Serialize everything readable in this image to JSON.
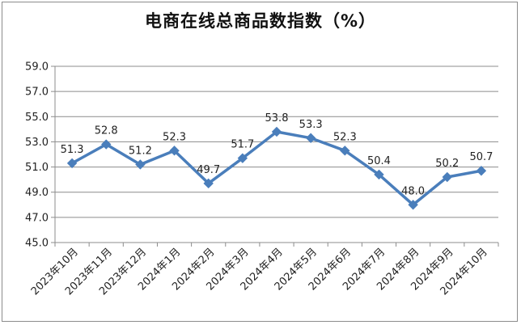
{
  "chart_data": {
    "type": "line",
    "title": "电商在线总商品数指数（%）",
    "categories": [
      "2023年10月",
      "2023年11月",
      "2023年12月",
      "2024年1月",
      "2024年2月",
      "2024年3月",
      "2024年4月",
      "2024年5月",
      "2024年6月",
      "2024年7月",
      "2024年8月",
      "2024年9月",
      "2024年10月"
    ],
    "series": [
      {
        "values": [
          51.3,
          52.8,
          51.2,
          52.3,
          49.7,
          51.7,
          53.8,
          53.3,
          52.3,
          50.4,
          48.0,
          50.2,
          50.7
        ],
        "labels": [
          "51.3",
          "52.8",
          "51.2",
          "52.3",
          "49.7",
          "51.7",
          "53.8",
          "53.3",
          "52.3",
          "50.4",
          "48.0",
          "50.2",
          "50.7"
        ],
        "color": "#4a7ebb",
        "marker": "diamond"
      }
    ],
    "yticks": [
      "45.0",
      "47.0",
      "49.0",
      "51.0",
      "53.0",
      "55.0",
      "57.0",
      "59.0"
    ],
    "ylim": [
      45,
      59
    ],
    "xlabel": "",
    "ylabel": "",
    "grid": true,
    "legend": "none"
  }
}
